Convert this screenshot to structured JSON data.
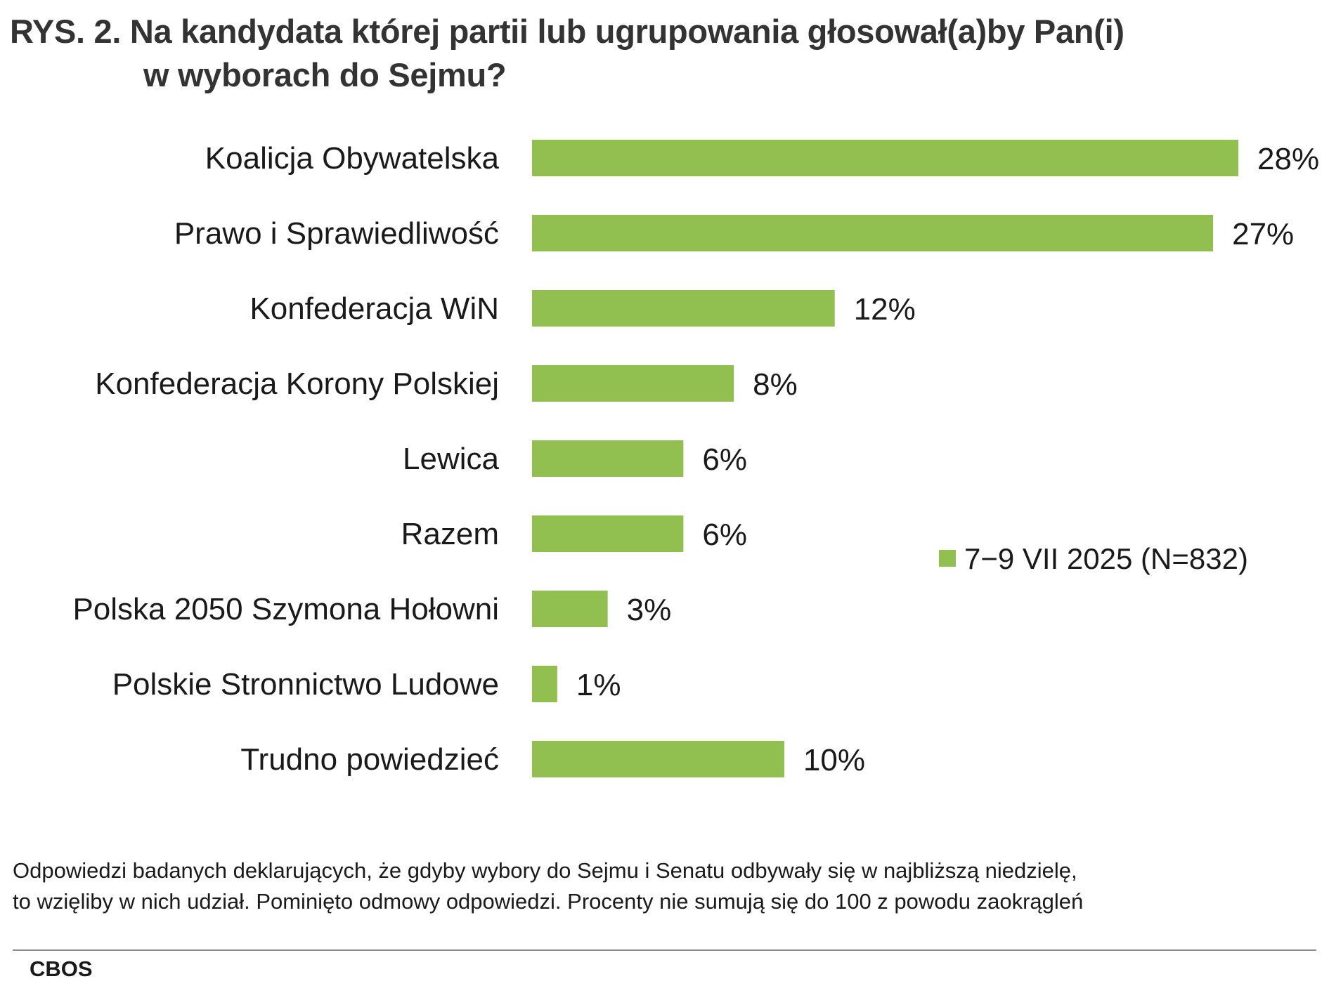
{
  "title": {
    "line1": "RYS. 2. Na kandydata której partii lub ugrupowania głosował(a)by Pan(i)",
    "line2": "w wyborach do Sejmu?"
  },
  "chart_data": {
    "type": "bar",
    "orientation": "horizontal",
    "categories": [
      "Koalicja Obywatelska",
      "Prawo i Sprawiedliwość",
      "Konfederacja WiN",
      "Konfederacja Korony Polskiej",
      "Lewica",
      "Razem",
      "Polska 2050 Szymona Hołowni",
      "Polskie Stronnictwo Ludowe",
      "Trudno powiedzieć"
    ],
    "series": [
      {
        "name": "7−9 VII 2025 (N=832)",
        "values": [
          28,
          27,
          12,
          8,
          6,
          6,
          3,
          1,
          10
        ],
        "labels": [
          "28%",
          "27%",
          "12%",
          "8%",
          "6%",
          "6%",
          "3%",
          "1%",
          "10%"
        ]
      }
    ],
    "unit": "%",
    "xlim": [
      0,
      28
    ],
    "grid": false,
    "legend_position": "right",
    "bar_color": "#92c050"
  },
  "footnote": {
    "line1": "Odpowiedzi badanych deklarujących, że gdyby wybory do Sejmu i Senatu odbywały się w najbliższą niedzielę,",
    "line2": "to wzięliby w nich udział. Pominięto odmowy odpowiedzi. Procenty nie sumują się do 100 z powodu zaokrągleń"
  },
  "source": "CBOS"
}
